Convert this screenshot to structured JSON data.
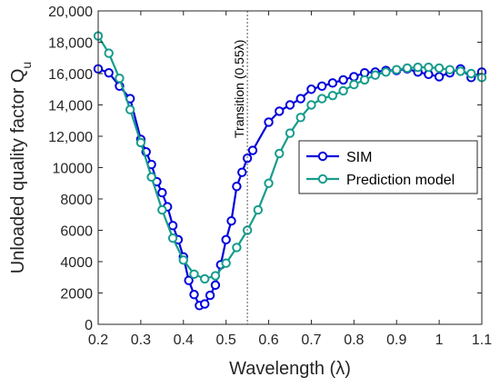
{
  "chart_data": {
    "type": "line",
    "title": "",
    "xlabel": "Wavelength (λ)",
    "ylabel": "Unloaded quality factor Q",
    "ylabel_subscript": "u",
    "xlim": [
      0.2,
      1.1
    ],
    "ylim": [
      0,
      20000
    ],
    "xticks": [
      0.2,
      0.3,
      0.4,
      0.5,
      0.6,
      0.7,
      0.8,
      0.9,
      1,
      1.1
    ],
    "xtick_labels": [
      "0.2",
      "0.3",
      "0.4",
      "0.5",
      "0.6",
      "0.7",
      "0.8",
      "0.9",
      "1",
      "1.1"
    ],
    "yticks": [
      0,
      2000,
      4000,
      6000,
      8000,
      10000,
      12000,
      14000,
      16000,
      18000,
      20000
    ],
    "ytick_labels": [
      "0",
      "2000",
      "4000",
      "6000",
      "8000",
      "10000",
      "12,000",
      "14,000",
      "16,000",
      "18,000",
      "20,000"
    ],
    "grid": false,
    "legend": {
      "placement": "center-right",
      "entries": [
        "SIM",
        "Prediction model"
      ]
    },
    "annotations": [
      {
        "type": "vline",
        "x": 0.55,
        "text": "Transition (0.55λ)"
      }
    ],
    "series": [
      {
        "name": "SIM",
        "color": "#0000dd",
        "x": [
          0.2,
          0.225,
          0.25,
          0.275,
          0.3,
          0.3125,
          0.325,
          0.3375,
          0.35,
          0.3625,
          0.375,
          0.3875,
          0.4,
          0.4125,
          0.425,
          0.4375,
          0.45,
          0.4625,
          0.475,
          0.4875,
          0.5,
          0.5125,
          0.525,
          0.5375,
          0.55,
          0.5625,
          0.6,
          0.625,
          0.65,
          0.675,
          0.7,
          0.725,
          0.75,
          0.775,
          0.8,
          0.825,
          0.85,
          0.875,
          0.9,
          0.925,
          0.95,
          0.975,
          1.0,
          1.025,
          1.05,
          1.075,
          1.1
        ],
        "y": [
          16300,
          16050,
          15200,
          14400,
          11800,
          11000,
          10200,
          9100,
          8400,
          7500,
          6300,
          5400,
          4300,
          2800,
          1900,
          1200,
          1300,
          1850,
          2500,
          3800,
          5400,
          6600,
          8800,
          9700,
          10600,
          11100,
          12900,
          13600,
          14000,
          14400,
          15000,
          15200,
          15400,
          15600,
          15800,
          16050,
          16100,
          16200,
          16200,
          16300,
          16100,
          15950,
          15800,
          16050,
          16300,
          15750,
          16100
        ]
      },
      {
        "name": "Prediction model",
        "color": "#169c8c",
        "x": [
          0.2,
          0.225,
          0.25,
          0.275,
          0.3,
          0.325,
          0.35,
          0.375,
          0.4,
          0.425,
          0.45,
          0.475,
          0.5,
          0.525,
          0.55,
          0.575,
          0.6,
          0.625,
          0.65,
          0.675,
          0.7,
          0.725,
          0.75,
          0.775,
          0.8,
          0.825,
          0.85,
          0.875,
          0.9,
          0.925,
          0.95,
          0.975,
          1.0,
          1.025,
          1.05,
          1.075,
          1.1
        ],
        "y": [
          18400,
          17300,
          15700,
          13700,
          11600,
          9400,
          7300,
          5500,
          4100,
          3200,
          2900,
          3100,
          3900,
          4900,
          6000,
          7300,
          9000,
          10900,
          12200,
          13200,
          14000,
          14400,
          14600,
          14900,
          15300,
          15600,
          15900,
          16100,
          16250,
          16350,
          16400,
          16400,
          16350,
          16250,
          16150,
          16000,
          15750
        ]
      }
    ]
  }
}
